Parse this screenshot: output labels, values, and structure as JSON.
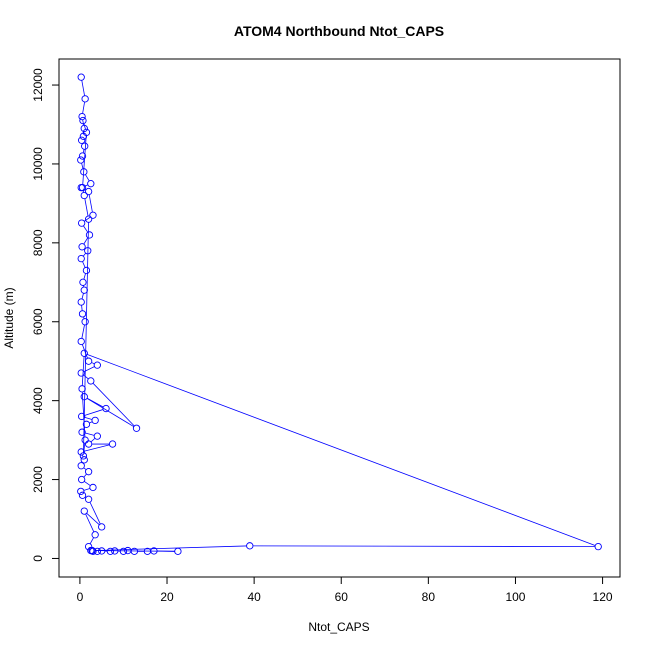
{
  "chart_data": {
    "type": "line",
    "title": "ATOM4 Northbound Ntot_CAPS",
    "xlabel": "Ntot_CAPS",
    "ylabel": "Altitude (m)",
    "xlim": [
      -4.8,
      124
    ],
    "ylim": [
      -470,
      12660
    ],
    "xticks": [
      0,
      20,
      40,
      60,
      80,
      100,
      120
    ],
    "yticks": [
      0,
      2000,
      4000,
      6000,
      8000,
      10000,
      12000
    ],
    "grid": false,
    "color": "#0000ff",
    "marker": "open-circle",
    "points": [
      [
        0.3,
        12200
      ],
      [
        1.2,
        11650
      ],
      [
        0.5,
        11200
      ],
      [
        1.0,
        10900
      ],
      [
        0.8,
        10700
      ],
      [
        0.4,
        10600
      ],
      [
        1.1,
        10450
      ],
      [
        0.6,
        10200
      ],
      [
        0.2,
        10100
      ],
      [
        0.9,
        9800
      ],
      [
        2.5,
        9500
      ],
      [
        0.3,
        9400
      ],
      [
        2.0,
        9300
      ],
      [
        3.0,
        8700
      ],
      [
        0.4,
        8500
      ],
      [
        2.2,
        8200
      ],
      [
        0.5,
        7900
      ],
      [
        1.8,
        7800
      ],
      [
        0.3,
        7600
      ],
      [
        1.5,
        7300
      ],
      [
        0.7,
        7000
      ],
      [
        1.0,
        6800
      ],
      [
        0.3,
        6500
      ],
      [
        0.6,
        6200
      ],
      [
        1.2,
        6000
      ],
      [
        0.3,
        5500
      ],
      [
        2.0,
        5000
      ],
      [
        4.0,
        4900
      ],
      [
        0.3,
        4700
      ],
      [
        2.5,
        4500
      ],
      [
        13.0,
        3300
      ],
      [
        1.0,
        4100
      ],
      [
        6.0,
        3800
      ],
      [
        0.4,
        3600
      ],
      [
        3.5,
        3500
      ],
      [
        1.5,
        3400
      ],
      [
        0.5,
        3200
      ],
      [
        4.0,
        3100
      ],
      [
        2.0,
        2900
      ],
      [
        7.5,
        2900
      ],
      [
        0.3,
        2700
      ],
      [
        1.0,
        2500
      ],
      [
        0.3,
        2350
      ],
      [
        2.0,
        2200
      ],
      [
        0.4,
        2000
      ],
      [
        3.0,
        1800
      ],
      [
        0.2,
        1700
      ],
      [
        0.6,
        1600
      ],
      [
        2.0,
        1500
      ],
      [
        5.0,
        800
      ],
      [
        1.0,
        1200
      ],
      [
        3.5,
        600
      ],
      [
        2.0,
        300
      ],
      [
        2.5,
        200
      ],
      [
        3.0,
        180
      ],
      [
        4.0,
        180
      ],
      [
        5.0,
        190
      ],
      [
        7.0,
        180
      ],
      [
        8.0,
        190
      ],
      [
        10.0,
        180
      ],
      [
        11.0,
        200
      ],
      [
        12.5,
        180
      ],
      [
        15.5,
        180
      ],
      [
        17.0,
        190
      ],
      [
        22.5,
        180
      ],
      [
        2.8,
        200
      ],
      [
        39.0,
        320
      ],
      [
        119.0,
        300
      ],
      [
        1.0,
        5200
      ],
      [
        0.5,
        4300
      ],
      [
        1.2,
        3000
      ],
      [
        0.8,
        2600
      ],
      [
        2.0,
        8600
      ],
      [
        1.0,
        9200
      ],
      [
        0.6,
        9400
      ],
      [
        1.5,
        10800
      ],
      [
        0.7,
        11100
      ]
    ]
  }
}
